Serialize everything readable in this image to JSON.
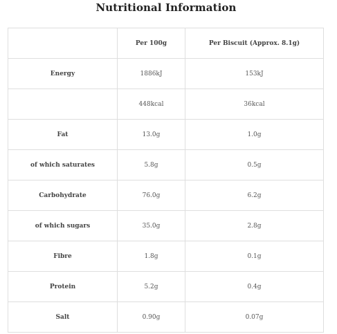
{
  "title": "Nutritional Information",
  "table": {
    "headers": [
      "",
      "Per 100g",
      "Per Biscuit (Approx. 8.1g)"
    ],
    "rows": [
      {
        "label": "Energy",
        "per100": "1886kJ",
        "perBiscuit": "153kJ"
      },
      {
        "label": "",
        "per100": "448kcal",
        "perBiscuit": "36kcal"
      },
      {
        "label": "Fat",
        "per100": "13.0g",
        "perBiscuit": "1.0g"
      },
      {
        "label": "of which saturates",
        "per100": "5.8g",
        "perBiscuit": "0.5g"
      },
      {
        "label": "Carbohydrate",
        "per100": "76.0g",
        "perBiscuit": "6.2g"
      },
      {
        "label": "of which sugars",
        "per100": "35.0g",
        "perBiscuit": "2.8g"
      },
      {
        "label": "Fibre",
        "per100": "1.8g",
        "perBiscuit": "0.1g"
      },
      {
        "label": "Protein",
        "per100": "5.2g",
        "perBiscuit": "0.4g"
      },
      {
        "label": "Salt",
        "per100": "0.90g",
        "perBiscuit": "0.07g"
      }
    ]
  }
}
